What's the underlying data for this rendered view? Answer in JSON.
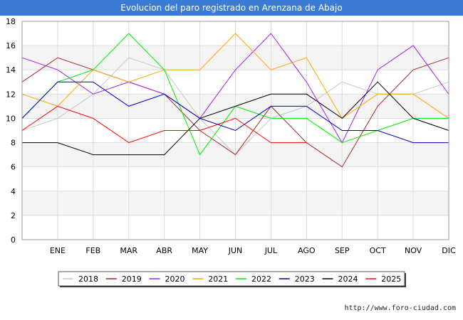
{
  "chart_data": {
    "type": "line",
    "title": "Evolucion del paro registrado en Arenzana de Abajo",
    "xlabel": "",
    "ylabel": "",
    "categories": [
      "",
      "ENE",
      "FEB",
      "MAR",
      "ABR",
      "MAY",
      "JUN",
      "JUL",
      "AGO",
      "SEP",
      "OCT",
      "NOV",
      "DIC"
    ],
    "ylim": [
      0,
      18
    ],
    "yticks": [
      0,
      2,
      4,
      6,
      8,
      10,
      12,
      14,
      16,
      18
    ],
    "grid": true,
    "legend_position": "bottom",
    "series": [
      {
        "name": "2018",
        "color": "#c8c8c8",
        "values": [
          9,
          10,
          12,
          15,
          14,
          10,
          7,
          10,
          11,
          13,
          12,
          12,
          13
        ]
      },
      {
        "name": "2019",
        "color": "#a52a2a",
        "values": [
          13,
          15,
          14,
          13,
          12,
          9,
          7,
          11,
          8,
          6,
          11,
          14,
          15
        ]
      },
      {
        "name": "2020",
        "color": "#a020f0",
        "values": [
          15,
          14,
          12,
          13,
          12,
          10,
          14,
          17,
          13,
          8,
          14,
          16,
          12
        ]
      },
      {
        "name": "2021",
        "color": "#ffa500",
        "values": [
          12,
          11,
          14,
          13,
          14,
          14,
          17,
          14,
          15,
          10,
          12,
          12,
          10
        ]
      },
      {
        "name": "2022",
        "color": "#00ee00",
        "values": [
          10,
          13,
          14,
          17,
          14,
          7,
          11,
          10,
          10,
          8,
          9,
          10,
          10
        ]
      },
      {
        "name": "2023",
        "color": "#0000cd",
        "values": [
          10,
          13,
          13,
          11,
          12,
          10,
          9,
          11,
          11,
          9,
          9,
          8,
          8
        ]
      },
      {
        "name": "2024",
        "color": "#000000",
        "values": [
          8,
          8,
          7,
          7,
          7,
          10,
          11,
          12,
          12,
          10,
          13,
          10,
          9
        ]
      },
      {
        "name": "2025",
        "color": "#ff0000",
        "values": [
          9,
          11,
          10,
          8,
          9,
          9,
          10,
          8,
          8,
          null,
          null,
          null,
          null
        ]
      }
    ]
  },
  "footer": {
    "source": "http://www.foro-ciudad.com"
  }
}
